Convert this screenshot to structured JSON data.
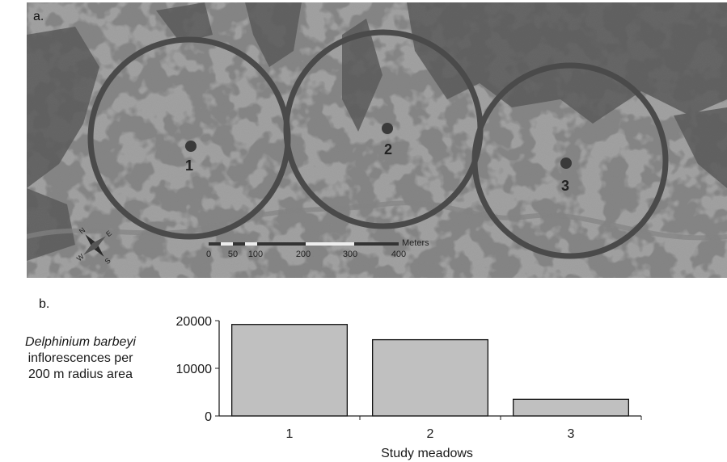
{
  "panel_a": {
    "label": "a.",
    "scale_bar": {
      "unit": "Meters",
      "ticks": [
        "0",
        "50",
        "100",
        "200",
        "300",
        "400"
      ]
    },
    "compass": {
      "n": "N",
      "e": "E",
      "s": "S",
      "w": "W"
    },
    "sites": [
      {
        "label": "1"
      },
      {
        "label": "2"
      },
      {
        "label": "3"
      }
    ],
    "colors": {
      "circle": "#4a4a4a",
      "background": "#9a9a9a",
      "forest": "#3a3a3a"
    }
  },
  "panel_b": {
    "label": "b.",
    "ylabel_species": "Delphinium barbeyi",
    "ylabel_line2": "inflorescences per",
    "ylabel_line3": "200 m radius area"
  },
  "chart_data": {
    "type": "bar",
    "categories": [
      "1",
      "2",
      "3"
    ],
    "values": [
      19200,
      16000,
      3500
    ],
    "xlabel": "Study meadows",
    "ylabel": "Delphinium barbeyi inflorescences per 200 m radius area",
    "yticks": [
      "0",
      "10000",
      "20000"
    ],
    "ylim": [
      0,
      20000
    ],
    "bar_color": "#c0c0c0",
    "grid": false
  }
}
